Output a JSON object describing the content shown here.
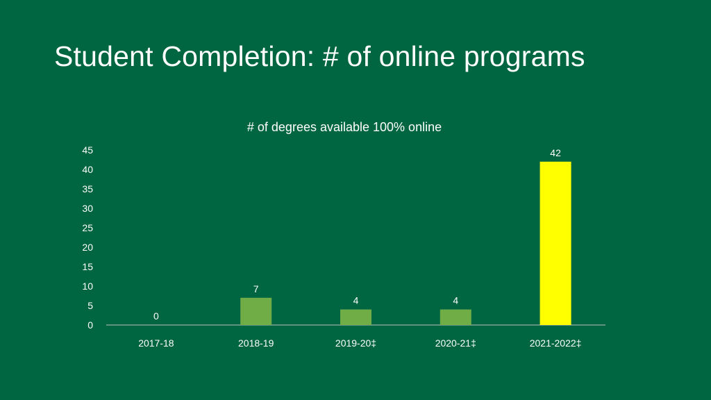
{
  "slide": {
    "title": "Student Completion:  # of online programs"
  },
  "colors": {
    "background": "#006641",
    "bar_default": "#70AD47",
    "bar_highlight": "#FFFF00",
    "text": "#FFFFFF",
    "axis": "#BFBFBF"
  },
  "chart_data": {
    "type": "bar",
    "title": "# of degrees available 100% online",
    "categories": [
      "2017-18",
      "2018-19",
      "2019-20‡",
      "2020-21‡",
      "2021-2022‡"
    ],
    "values": [
      0,
      7,
      4,
      4,
      42
    ],
    "data_labels": [
      "0",
      "7",
      "4",
      "4",
      "42"
    ],
    "highlight_index": 4,
    "ylim": [
      0,
      45
    ],
    "yticks": [
      0,
      5,
      10,
      15,
      20,
      25,
      30,
      35,
      40,
      45
    ],
    "grid": false,
    "legend": "none",
    "xlabel": "",
    "ylabel": ""
  }
}
